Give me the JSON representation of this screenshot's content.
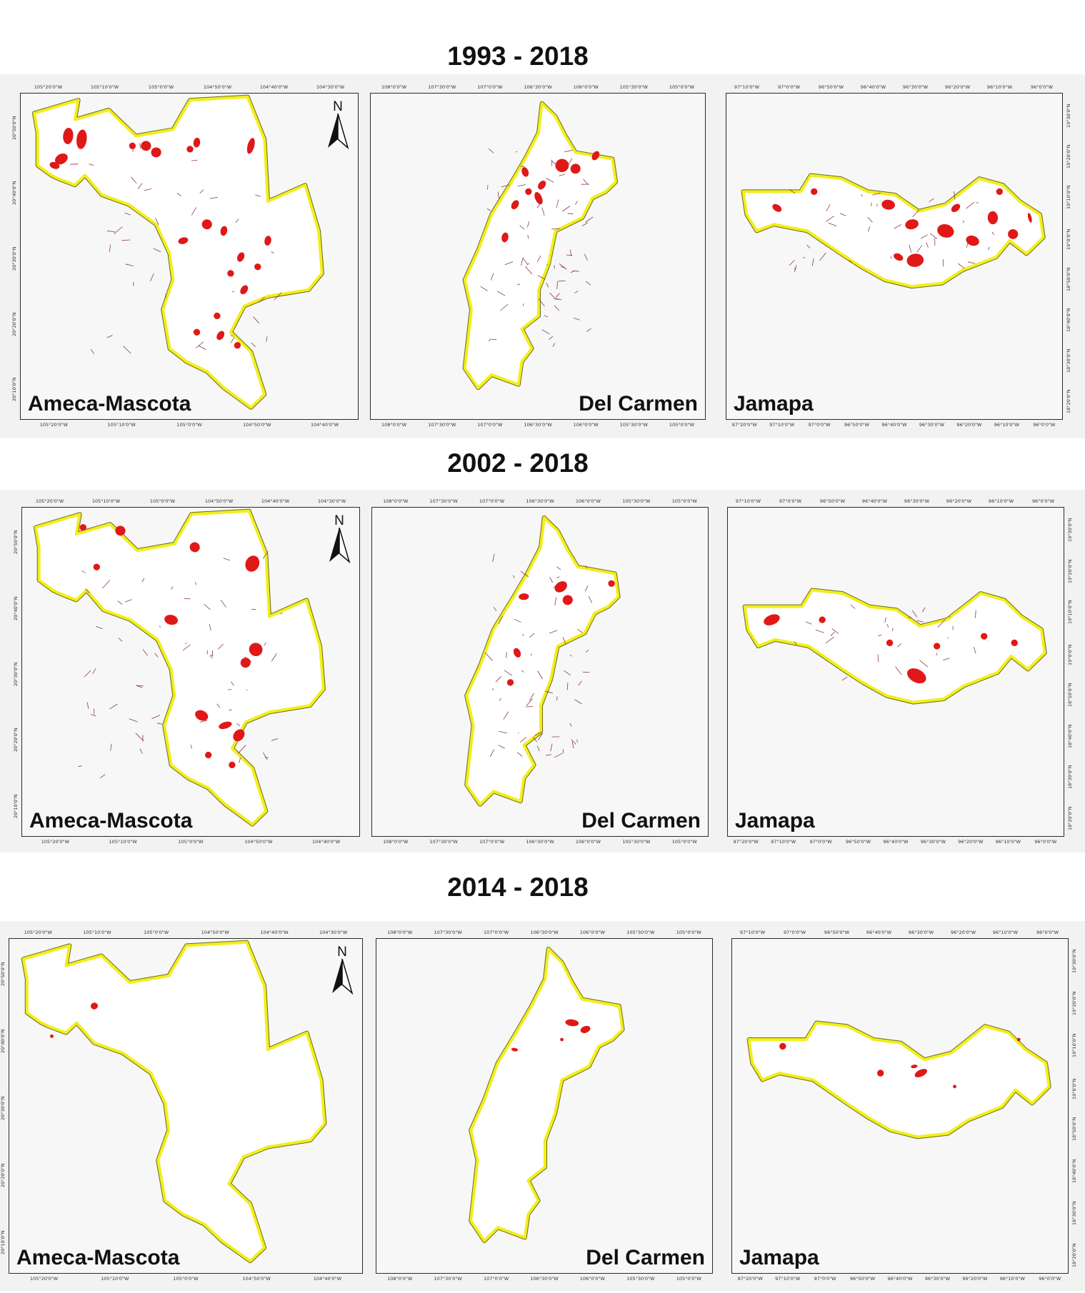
{
  "rows": [
    {
      "title": "1993 - 2018",
      "panels": [
        {
          "name": "Ameca-Mascota",
          "label": "Ameca-Mascota",
          "top_ticks": [
            "105°20'0\"W",
            "105°10'0\"W",
            "105°0'0\"W",
            "104°50'0\"W",
            "104°40'0\"W",
            "104°30'0\"W"
          ],
          "bottom_ticks": [
            "105°20'0\"W",
            "105°10'0\"W",
            "105°0'0\"W",
            "104°50'0\"W",
            "104°40'0\"W"
          ],
          "side_ticks": [
            "20°50'0\"N",
            "20°40'0\"N",
            "20°30'0\"N",
            "20°20'0\"N",
            "20°10'0\"N"
          ]
        },
        {
          "name": "Del Carmen",
          "label": "Del Carmen",
          "top_ticks": [
            "108°0'0\"W",
            "107°30'0\"W",
            "107°0'0\"W",
            "106°30'0\"W",
            "106°0'0\"W",
            "105°30'0\"W",
            "105°0'0\"W"
          ],
          "bottom_ticks": [
            "108°0'0\"W",
            "107°30'0\"W",
            "107°0'0\"W",
            "106°30'0\"W",
            "106°0'0\"W",
            "105°30'0\"W",
            "105°0'0\"W"
          ],
          "side_ticks": []
        },
        {
          "name": "Jamapa",
          "label": "Jamapa",
          "top_ticks": [
            "97°10'0\"W",
            "97°0'0\"W",
            "96°50'0\"W",
            "96°40'0\"W",
            "96°30'0\"W",
            "96°20'0\"W",
            "96°10'0\"W",
            "96°0'0\"W"
          ],
          "bottom_ticks": [
            "97°20'0\"W",
            "97°10'0\"W",
            "97°0'0\"W",
            "96°50'0\"W",
            "96°40'0\"W",
            "96°30'0\"W",
            "96°20'0\"W",
            "96°10'0\"W",
            "96°0'0\"W"
          ],
          "side_ticks": [
            "19°30'0\"N",
            "19°20'0\"N",
            "19°10'0\"N",
            "19°0'0\"N",
            "18°50'0\"N",
            "18°40'0\"N",
            "18°30'0\"N",
            "18°20'0\"N"
          ]
        }
      ]
    },
    {
      "title": "2002 - 2018",
      "panels": [
        {
          "name": "Ameca-Mascota",
          "label": "Ameca-Mascota",
          "top_ticks": [
            "105°20'0\"W",
            "105°10'0\"W",
            "105°0'0\"W",
            "104°50'0\"W",
            "104°40'0\"W",
            "104°30'0\"W"
          ],
          "bottom_ticks": [
            "105°20'0\"W",
            "105°10'0\"W",
            "105°0'0\"W",
            "104°50'0\"W",
            "104°40'0\"W"
          ],
          "side_ticks": [
            "20°50'0\"N",
            "20°40'0\"N",
            "20°30'0\"N",
            "20°20'0\"N",
            "20°10'0\"N"
          ]
        },
        {
          "name": "Del Carmen",
          "label": "Del Carmen",
          "top_ticks": [
            "108°0'0\"W",
            "107°30'0\"W",
            "107°0'0\"W",
            "106°30'0\"W",
            "106°0'0\"W",
            "105°30'0\"W",
            "105°0'0\"W"
          ],
          "bottom_ticks": [
            "108°0'0\"W",
            "107°30'0\"W",
            "107°0'0\"W",
            "106°30'0\"W",
            "106°0'0\"W",
            "105°30'0\"W",
            "105°0'0\"W"
          ],
          "side_ticks": []
        },
        {
          "name": "Jamapa",
          "label": "Jamapa",
          "top_ticks": [
            "97°10'0\"W",
            "97°0'0\"W",
            "96°50'0\"W",
            "96°40'0\"W",
            "96°30'0\"W",
            "96°20'0\"W",
            "96°10'0\"W",
            "96°0'0\"W"
          ],
          "bottom_ticks": [
            "97°20'0\"W",
            "97°10'0\"W",
            "97°0'0\"W",
            "96°50'0\"W",
            "96°40'0\"W",
            "96°30'0\"W",
            "96°20'0\"W",
            "96°10'0\"W",
            "96°0'0\"W"
          ],
          "side_ticks": [
            "19°30'0\"N",
            "19°20'0\"N",
            "19°10'0\"N",
            "19°0'0\"N",
            "18°50'0\"N",
            "18°40'0\"N",
            "18°30'0\"N",
            "18°20'0\"N"
          ]
        }
      ]
    },
    {
      "title": "2014 - 2018",
      "panels": [
        {
          "name": "Ameca-Mascota",
          "label": "Ameca-Mascota",
          "top_ticks": [
            "105°20'0\"W",
            "105°10'0\"W",
            "105°0'0\"W",
            "104°50'0\"W",
            "104°40'0\"W",
            "104°30'0\"W"
          ],
          "bottom_ticks": [
            "105°20'0\"W",
            "105°10'0\"W",
            "105°0'0\"W",
            "104°50'0\"W",
            "104°40'0\"W"
          ],
          "side_ticks": [
            "20°50'0\"N",
            "20°40'0\"N",
            "20°30'0\"N",
            "20°20'0\"N",
            "20°10'0\"N"
          ]
        },
        {
          "name": "Del Carmen",
          "label": "Del Carmen",
          "top_ticks": [
            "108°0'0\"W",
            "107°30'0\"W",
            "107°0'0\"W",
            "106°30'0\"W",
            "106°0'0\"W",
            "105°30'0\"W",
            "105°0'0\"W"
          ],
          "bottom_ticks": [
            "108°0'0\"W",
            "107°30'0\"W",
            "107°0'0\"W",
            "106°30'0\"W",
            "106°0'0\"W",
            "105°30'0\"W",
            "105°0'0\"W"
          ],
          "side_ticks": []
        },
        {
          "name": "Jamapa",
          "label": "Jamapa",
          "top_ticks": [
            "97°10'0\"W",
            "97°0'0\"W",
            "96°50'0\"W",
            "96°40'0\"W",
            "96°30'0\"W",
            "96°20'0\"W",
            "96°10'0\"W",
            "96°0'0\"W"
          ],
          "bottom_ticks": [
            "97°20'0\"W",
            "97°10'0\"W",
            "97°0'0\"W",
            "96°50'0\"W",
            "96°40'0\"W",
            "96°30'0\"W",
            "96°20'0\"W",
            "96°10'0\"W",
            "96°0'0\"W"
          ],
          "side_ticks": [
            "19°30'0\"N",
            "19°20'0\"N",
            "19°10'0\"N",
            "19°0'0\"N",
            "18°50'0\"N",
            "18°40'0\"N",
            "18°30'0\"N",
            "18°20'0\"N"
          ]
        }
      ]
    }
  ],
  "north_label": "N",
  "colors": {
    "boundary": "#f2ee1c",
    "boundary_edge": "#6b6a20",
    "change": "#e01818",
    "stream": "#8a3b4a",
    "panel_bg": "#f7f7f7"
  }
}
